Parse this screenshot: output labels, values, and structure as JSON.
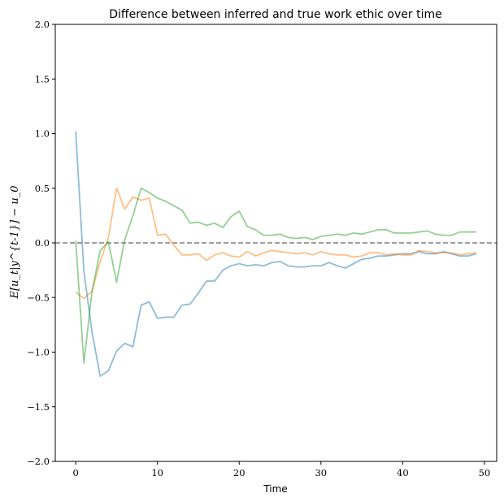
{
  "chart_data": {
    "type": "line",
    "title": "Difference between inferred and true work ethic over time",
    "xlabel": "Time",
    "ylabel": "E[u_t|y^{t-1}] − u_0",
    "xlim": [
      -2.5,
      51.5
    ],
    "ylim": [
      -2.0,
      2.0
    ],
    "xticks": [
      0,
      10,
      20,
      30,
      40,
      50
    ],
    "yticks": [
      -2.0,
      -1.5,
      -1.0,
      -0.5,
      0.0,
      0.5,
      1.0,
      1.5,
      2.0
    ],
    "xtick_labels": [
      "0",
      "10",
      "20",
      "30",
      "40",
      "50"
    ],
    "ytick_labels": [
      "−2.0",
      "−1.5",
      "−1.0",
      "−0.5",
      "0.0",
      "0.5",
      "1.0",
      "1.5",
      "2.0"
    ],
    "grid": false,
    "reference_line": {
      "y": 0.0,
      "style": "dashed",
      "color": "#7f7f7f"
    },
    "x": [
      0,
      1,
      2,
      3,
      4,
      5,
      6,
      7,
      8,
      9,
      10,
      11,
      12,
      13,
      14,
      15,
      16,
      17,
      18,
      19,
      20,
      21,
      22,
      23,
      24,
      25,
      26,
      27,
      28,
      29,
      30,
      31,
      32,
      33,
      34,
      35,
      36,
      37,
      38,
      39,
      40,
      41,
      42,
      43,
      44,
      45,
      46,
      47,
      48,
      49
    ],
    "series": [
      {
        "color": "#1f77b4",
        "values": [
          1.02,
          -0.26,
          -0.82,
          -1.22,
          -1.17,
          -0.99,
          -0.92,
          -0.95,
          -0.57,
          -0.54,
          -0.69,
          -0.68,
          -0.68,
          -0.57,
          -0.56,
          -0.46,
          -0.35,
          -0.35,
          -0.25,
          -0.21,
          -0.19,
          -0.21,
          -0.2,
          -0.21,
          -0.18,
          -0.17,
          -0.21,
          -0.22,
          -0.22,
          -0.21,
          -0.21,
          -0.18,
          -0.21,
          -0.23,
          -0.19,
          -0.15,
          -0.14,
          -0.12,
          -0.12,
          -0.11,
          -0.1,
          -0.1,
          -0.08,
          -0.1,
          -0.1,
          -0.08,
          -0.1,
          -0.12,
          -0.12,
          -0.1
        ]
      },
      {
        "color": "#ff7f0e",
        "values": [
          -0.45,
          -0.51,
          -0.44,
          -0.17,
          0.05,
          0.5,
          0.31,
          0.42,
          0.39,
          0.41,
          0.07,
          0.08,
          -0.02,
          -0.11,
          -0.11,
          -0.1,
          -0.16,
          -0.11,
          -0.09,
          -0.12,
          -0.13,
          -0.08,
          -0.12,
          -0.09,
          -0.07,
          -0.08,
          -0.09,
          -0.1,
          -0.09,
          -0.11,
          -0.08,
          -0.1,
          -0.11,
          -0.11,
          -0.13,
          -0.12,
          -0.09,
          -0.09,
          -0.11,
          -0.1,
          -0.11,
          -0.11,
          -0.07,
          -0.08,
          -0.09,
          -0.09,
          -0.09,
          -0.11,
          -0.1,
          -0.09
        ]
      },
      {
        "color": "#2ca02c",
        "values": [
          0.02,
          -1.1,
          -0.44,
          -0.07,
          0.01,
          -0.36,
          0.03,
          0.25,
          0.5,
          0.46,
          0.41,
          0.38,
          0.34,
          0.3,
          0.18,
          0.19,
          0.16,
          0.18,
          0.14,
          0.24,
          0.29,
          0.15,
          0.12,
          0.07,
          0.07,
          0.08,
          0.05,
          0.04,
          0.05,
          0.03,
          0.06,
          0.07,
          0.08,
          0.07,
          0.09,
          0.08,
          0.1,
          0.12,
          0.12,
          0.09,
          0.09,
          0.09,
          0.1,
          0.11,
          0.08,
          0.07,
          0.07,
          0.1,
          0.1,
          0.1
        ]
      }
    ]
  }
}
